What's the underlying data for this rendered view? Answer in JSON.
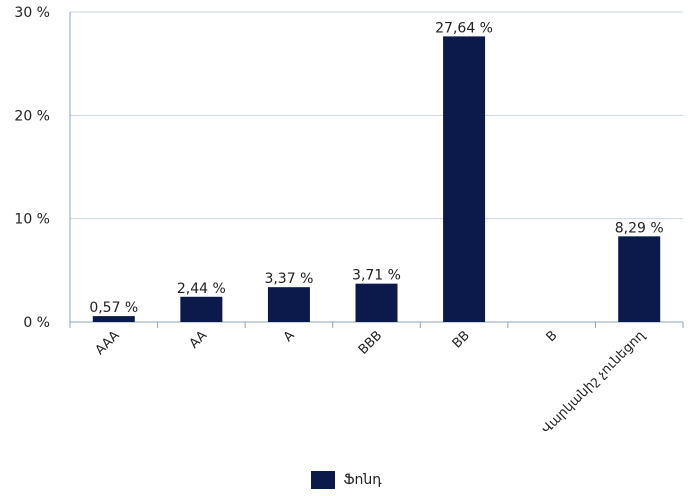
{
  "chart_data": {
    "type": "bar",
    "categories": [
      "AAA",
      "AA",
      "A",
      "BBB",
      "BB",
      "B",
      "Վարկանիշ չունեցող"
    ],
    "series": [
      {
        "name": "Ֆոնդ",
        "values": [
          0.57,
          2.44,
          3.37,
          3.71,
          27.64,
          null,
          8.29
        ],
        "data_labels": [
          "0,57 %",
          "2,44 %",
          "3,37 %",
          "3,71 %",
          "27,64 %",
          "",
          "8,29 %"
        ]
      }
    ],
    "ylim": [
      0,
      30
    ],
    "yticks": [
      0,
      10,
      20,
      30
    ],
    "ytick_labels": [
      "0 %",
      "10 %",
      "20 %",
      "30 %"
    ],
    "grid": true,
    "legend_position": "bottom",
    "colors": {
      "bar": "#0b1a4a",
      "grid": "#c9d6e3",
      "axis": "#8ea6bf"
    }
  }
}
